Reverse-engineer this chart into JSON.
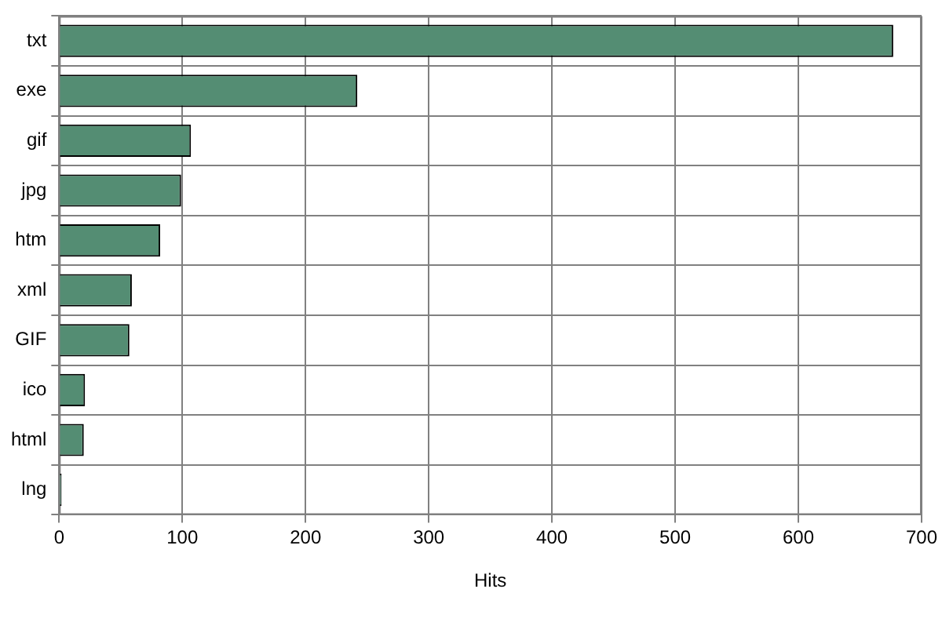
{
  "chart_data": {
    "type": "bar",
    "orientation": "horizontal",
    "xlabel": "Hits",
    "categories": [
      "txt",
      "exe",
      "gif",
      "jpg",
      "htm",
      "xml",
      "GIF",
      "ico",
      "html",
      "lng"
    ],
    "values": [
      677,
      242,
      107,
      99,
      82,
      59,
      57,
      21,
      20,
      2
    ],
    "color": "#548d73",
    "xlim": [
      0,
      700
    ],
    "xticks": [
      0,
      100,
      200,
      300,
      400,
      500,
      600,
      700
    ],
    "grid": true,
    "legend": false
  }
}
